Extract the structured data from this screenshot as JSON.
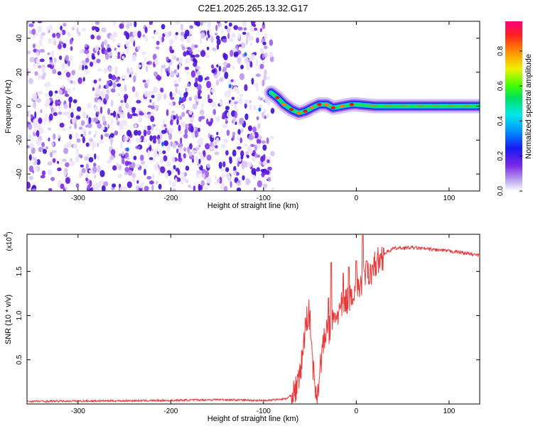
{
  "title": "C2E1.2025.265.13.32.G17",
  "colors": {
    "scatter_purple": "#7a28e8",
    "scatter_light": "#d8c4f6",
    "snr_line": "#e8383a",
    "axis": "#000000"
  },
  "chart_data": [
    {
      "type": "heatmap",
      "name": "spectrogram",
      "xlabel": "Height of straight line (km)",
      "ylabel": "Frequency (Hz)",
      "xlim": [
        -355,
        133
      ],
      "ylim": [
        -50,
        50
      ],
      "xticks": [
        -300,
        -200,
        -100,
        0,
        100
      ],
      "yticks": [
        -40,
        -20,
        0,
        20,
        40
      ],
      "xtick_labels": [
        "-300",
        "-200",
        "-100",
        "0",
        "100"
      ],
      "ytick_labels": [
        "-40",
        "-20",
        "0",
        "20",
        "40"
      ],
      "noise_region_x": [
        -355,
        -90
      ],
      "signal_track": [
        {
          "x": -92,
          "y": 8
        },
        {
          "x": -85,
          "y": 5
        },
        {
          "x": -78,
          "y": 1
        },
        {
          "x": -70,
          "y": -2
        },
        {
          "x": -62,
          "y": -4
        },
        {
          "x": -55,
          "y": -3
        },
        {
          "x": -48,
          "y": -1
        },
        {
          "x": -40,
          "y": 1
        },
        {
          "x": -32,
          "y": 1
        },
        {
          "x": -25,
          "y": -1
        },
        {
          "x": -15,
          "y": 0
        },
        {
          "x": -5,
          "y": 1
        },
        {
          "x": 0,
          "y": 1
        },
        {
          "x": 20,
          "y": 0
        },
        {
          "x": 60,
          "y": 0
        },
        {
          "x": 100,
          "y": 0
        },
        {
          "x": 133,
          "y": 0
        }
      ],
      "colorbar": {
        "label": "Normalized spectral amplitude",
        "range": [
          0,
          0.97
        ],
        "ticks": [
          0.0,
          0.2,
          0.4,
          0.6,
          0.8
        ],
        "tick_labels": [
          "0.0",
          "0.2",
          "0.4",
          "0.6",
          "0.8"
        ]
      }
    },
    {
      "type": "line",
      "name": "snr",
      "xlabel": "Height of straight line (km)",
      "ylabel": "SNR (10 * v/v)",
      "scale_label": "(x10",
      "scale_exp": "4",
      "scale_close": ")",
      "xlim": [
        -355,
        133
      ],
      "ylim": [
        0,
        1.92
      ],
      "xticks": [
        -300,
        -200,
        -100,
        0,
        100
      ],
      "yticks": [
        0.5,
        1.0,
        1.5
      ],
      "xtick_labels": [
        "-300",
        "-200",
        "-100",
        "0",
        "100"
      ],
      "ytick_labels": [
        "0.5",
        "1.0",
        "1.5"
      ],
      "envelope": [
        {
          "x": -355,
          "y": 0.03
        },
        {
          "x": -200,
          "y": 0.04
        },
        {
          "x": -150,
          "y": 0.05
        },
        {
          "x": -100,
          "y": 0.04
        },
        {
          "x": -75,
          "y": 0.06
        },
        {
          "x": -68,
          "y": 0.12
        },
        {
          "x": -62,
          "y": 0.25
        },
        {
          "x": -58,
          "y": 0.55
        },
        {
          "x": -55,
          "y": 0.85
        },
        {
          "x": -52,
          "y": 1.05
        },
        {
          "x": -50,
          "y": 0.95
        },
        {
          "x": -47,
          "y": 0.5
        },
        {
          "x": -45,
          "y": 0.2
        },
        {
          "x": -42,
          "y": 0.1
        },
        {
          "x": -40,
          "y": 0.3
        },
        {
          "x": -37,
          "y": 0.6
        },
        {
          "x": -33,
          "y": 0.8
        },
        {
          "x": -28,
          "y": 0.85
        },
        {
          "x": -22,
          "y": 1.0
        },
        {
          "x": -15,
          "y": 1.1
        },
        {
          "x": -8,
          "y": 1.2
        },
        {
          "x": 0,
          "y": 1.3
        },
        {
          "x": 8,
          "y": 1.4
        },
        {
          "x": 15,
          "y": 1.5
        },
        {
          "x": 22,
          "y": 1.6
        },
        {
          "x": 30,
          "y": 1.7
        },
        {
          "x": 40,
          "y": 1.76
        },
        {
          "x": 60,
          "y": 1.77
        },
        {
          "x": 90,
          "y": 1.74
        },
        {
          "x": 110,
          "y": 1.72
        },
        {
          "x": 133,
          "y": 1.68
        }
      ],
      "spikes": [
        {
          "x": -30,
          "y": 1.2
        },
        {
          "x": -27,
          "y": 1.6
        },
        {
          "x": -14,
          "y": 1.48
        },
        {
          "x": -8,
          "y": 1.55
        },
        {
          "x": 0,
          "y": 1.62
        },
        {
          "x": 7,
          "y": 1.92
        },
        {
          "x": 11,
          "y": 1.62
        }
      ]
    }
  ]
}
